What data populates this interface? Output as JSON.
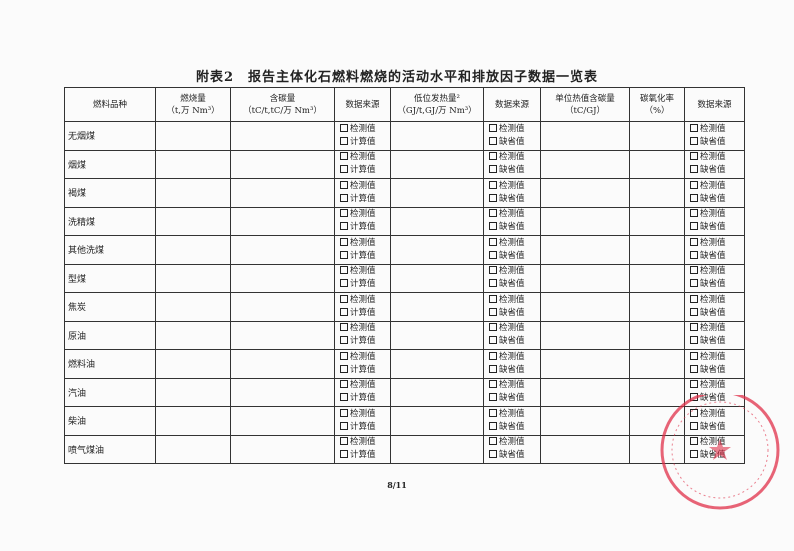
{
  "title": "附表2　报告主体化石燃料燃烧的活动水平和排放因子数据一览表",
  "headers": [
    "燃料品种",
    "燃烧量\n（t,万 Nm³）",
    "含碳量\n（tC/t,tC/万 Nm³）",
    "数据来源",
    "低位发热量²\n（GJ/t,GJ/万 Nm³）",
    "数据来源",
    "单位热值含碳量\n（tC/GJ）",
    "碳氧化率\n（%）",
    "数据来源"
  ],
  "options": {
    "measured": "检测值",
    "calculated": "计算值",
    "default": "缺省值"
  },
  "fuels": [
    "无烟煤",
    "烟煤",
    "褐煤",
    "洗精煤",
    "其他洗煤",
    "型煤",
    "焦炭",
    "原油",
    "燃料油",
    "汽油",
    "柴油",
    "喷气煤油"
  ],
  "page_number": "8/11",
  "stamp_color": "#e0304a"
}
